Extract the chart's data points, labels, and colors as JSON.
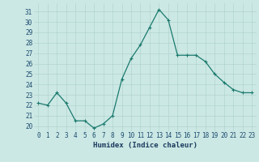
{
  "x": [
    0,
    1,
    2,
    3,
    4,
    5,
    6,
    7,
    8,
    9,
    10,
    11,
    12,
    13,
    14,
    15,
    16,
    17,
    18,
    19,
    20,
    21,
    22,
    23
  ],
  "y": [
    22.2,
    22.0,
    23.2,
    22.2,
    20.5,
    20.5,
    19.8,
    20.2,
    21.0,
    24.5,
    26.5,
    27.8,
    29.5,
    31.2,
    30.2,
    26.8,
    26.8,
    26.8,
    26.2,
    25.0,
    24.2,
    23.5,
    23.2,
    23.2
  ],
  "line_color": "#1a7a6e",
  "marker": "+",
  "markersize": 3.5,
  "linewidth": 0.9,
  "bg_color": "#cce8e4",
  "grid_color": "#aacfcb",
  "xlabel": "Humidex (Indice chaleur)",
  "xlabel_fontsize": 6.5,
  "xlabel_color": "#1a3a5e",
  "ytick_labels": [
    "20",
    "21",
    "22",
    "23",
    "24",
    "25",
    "26",
    "27",
    "28",
    "29",
    "30",
    "31"
  ],
  "ytick_vals": [
    20,
    21,
    22,
    23,
    24,
    25,
    26,
    27,
    28,
    29,
    30,
    31
  ],
  "xtick_vals": [
    0,
    1,
    2,
    3,
    4,
    5,
    6,
    7,
    8,
    9,
    10,
    11,
    12,
    13,
    14,
    15,
    16,
    17,
    18,
    19,
    20,
    21,
    22,
    23
  ],
  "xtick_labels": [
    "0",
    "1",
    "2",
    "3",
    "4",
    "5",
    "6",
    "7",
    "8",
    "9",
    "10",
    "11",
    "12",
    "13",
    "14",
    "15",
    "16",
    "17",
    "18",
    "19",
    "20",
    "21",
    "22",
    "23"
  ],
  "ylim": [
    19.5,
    31.8
  ],
  "xlim": [
    -0.5,
    23.5
  ],
  "tick_fontsize": 5.5,
  "tick_color": "#1a4a6e"
}
